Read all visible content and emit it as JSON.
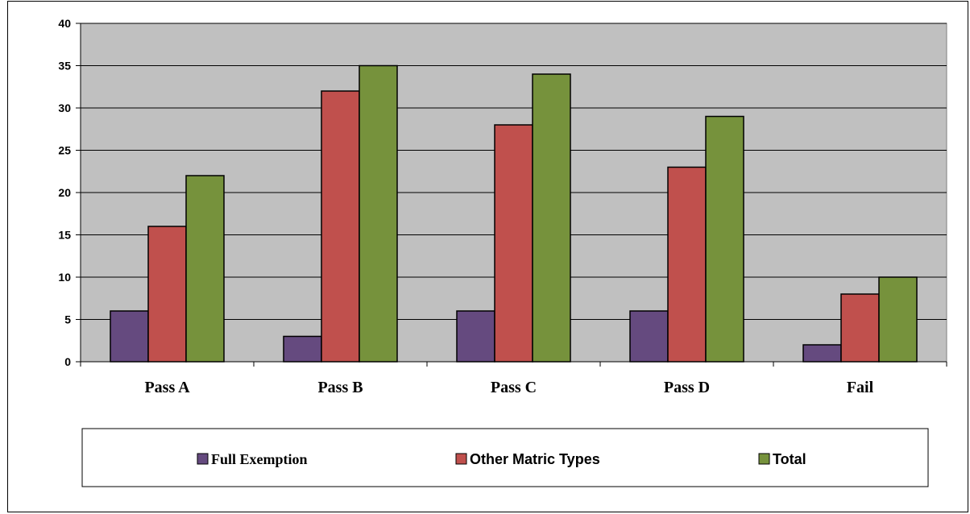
{
  "chart_data": {
    "type": "bar",
    "title": "",
    "xlabel": "",
    "ylabel": "",
    "categories": [
      "Pass A",
      "Pass B",
      "Pass C",
      "Pass D",
      "Fail"
    ],
    "series": [
      {
        "name": "Full Exemption",
        "values": [
          6,
          3,
          6,
          6,
          2
        ],
        "color": "#654a7f"
      },
      {
        "name": "Other Matric Types",
        "values": [
          16,
          32,
          28,
          23,
          8
        ],
        "color": "#c0504d"
      },
      {
        "name": "Total",
        "values": [
          22,
          35,
          34,
          29,
          10
        ],
        "color": "#76923c"
      }
    ],
    "ylim": [
      0,
      40
    ],
    "yticks": [
      0,
      5,
      10,
      15,
      20,
      25,
      30,
      35,
      40
    ],
    "grid": true,
    "plot_background": "#c0c0c0",
    "legend_position": "bottom"
  }
}
